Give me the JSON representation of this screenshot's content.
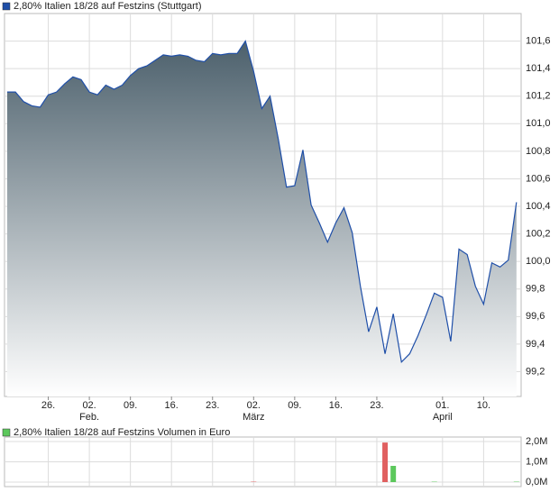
{
  "chart_data": [
    {
      "type": "area",
      "categories": [
        null,
        null,
        null,
        null,
        null,
        "26.",
        null,
        null,
        null,
        null,
        "02.",
        null,
        null,
        null,
        null,
        "09.",
        null,
        null,
        null,
        null,
        "16.",
        null,
        null,
        null,
        null,
        "23.",
        null,
        null,
        null,
        null,
        "02.",
        null,
        null,
        null,
        null,
        "09.",
        null,
        null,
        null,
        null,
        "16.",
        null,
        null,
        null,
        null,
        "23.",
        null,
        null,
        null,
        null,
        null,
        null,
        null,
        "01.",
        null,
        null,
        null,
        null,
        "10.",
        null,
        null,
        null,
        null
      ],
      "month_labels": [
        null,
        null,
        null,
        null,
        null,
        null,
        null,
        null,
        null,
        null,
        "Feb.",
        null,
        null,
        null,
        null,
        null,
        null,
        null,
        null,
        null,
        null,
        null,
        null,
        null,
        null,
        null,
        null,
        null,
        null,
        null,
        "März",
        null,
        null,
        null,
        null,
        null,
        null,
        null,
        null,
        null,
        null,
        null,
        null,
        null,
        null,
        null,
        null,
        null,
        null,
        null,
        null,
        null,
        null,
        "April",
        null,
        null,
        null,
        null,
        null,
        null,
        null,
        null,
        null
      ],
      "series": [
        {
          "name": "2,80% Italien 18/28 auf Festzins (Stuttgart)",
          "color": "#1f4fa8",
          "values": [
            101.23,
            101.23,
            101.16,
            101.13,
            101.12,
            101.21,
            101.23,
            101.29,
            101.34,
            101.32,
            101.23,
            101.21,
            101.28,
            101.25,
            101.28,
            101.35,
            101.4,
            101.42,
            101.46,
            101.5,
            101.49,
            101.5,
            101.49,
            101.46,
            101.45,
            101.51,
            101.5,
            101.51,
            101.51,
            101.6,
            101.38,
            101.11,
            101.2,
            100.89,
            100.54,
            100.55,
            100.81,
            100.41,
            100.28,
            100.14,
            100.28,
            100.39,
            100.21,
            99.82,
            99.49,
            99.67,
            99.33,
            99.62,
            99.27,
            99.33,
            99.46,
            99.61,
            99.77,
            99.74,
            99.42,
            100.09,
            100.05,
            99.82,
            99.69,
            99.99,
            99.96,
            100.01,
            100.43
          ]
        }
      ],
      "ylim": [
        99.02,
        101.8
      ],
      "yticks": [
        {
          "value": 99.2,
          "label": "99,2"
        },
        {
          "value": 99.4,
          "label": "99,4"
        },
        {
          "value": 99.6,
          "label": "99,6"
        },
        {
          "value": 99.8,
          "label": "99,8"
        },
        {
          "value": 100.0,
          "label": "100,0"
        },
        {
          "value": 100.2,
          "label": "100,2"
        },
        {
          "value": 100.4,
          "label": "100,4"
        },
        {
          "value": 100.6,
          "label": "100,6"
        },
        {
          "value": 100.8,
          "label": "100,8"
        },
        {
          "value": 101.0,
          "label": "101,0"
        },
        {
          "value": 101.2,
          "label": "101,2"
        },
        {
          "value": 101.4,
          "label": "101,4"
        },
        {
          "value": 101.6,
          "label": "101,6"
        }
      ],
      "grid": true
    },
    {
      "type": "bar",
      "series": [
        {
          "name": "2,80% Italien 18/28 auf Festzins Volumen in Euro",
          "color": "#5cc85c",
          "values": [
            0,
            0,
            0,
            0,
            0,
            0,
            0,
            0,
            0,
            0,
            0,
            0,
            0,
            0,
            0,
            0,
            0,
            0,
            0,
            0,
            0,
            0,
            0,
            0,
            0,
            0,
            0,
            0,
            0,
            0,
            20000,
            0,
            0,
            0,
            0,
            0,
            0,
            0,
            0,
            0,
            0,
            0,
            0,
            0,
            0,
            0,
            1950000,
            800000,
            0,
            0,
            0,
            0,
            20000,
            0,
            0,
            0,
            0,
            0,
            0,
            0,
            0,
            0,
            20000
          ],
          "colors": [
            "#5cc85c",
            "#5cc85c",
            "#5cc85c",
            "#5cc85c",
            "#5cc85c",
            "#5cc85c",
            "#5cc85c",
            "#5cc85c",
            "#5cc85c",
            "#5cc85c",
            "#5cc85c",
            "#5cc85c",
            "#5cc85c",
            "#5cc85c",
            "#5cc85c",
            "#5cc85c",
            "#5cc85c",
            "#5cc85c",
            "#5cc85c",
            "#5cc85c",
            "#5cc85c",
            "#5cc85c",
            "#5cc85c",
            "#5cc85c",
            "#5cc85c",
            "#5cc85c",
            "#5cc85c",
            "#5cc85c",
            "#5cc85c",
            "#5cc85c",
            "#e06060",
            "#5cc85c",
            "#5cc85c",
            "#5cc85c",
            "#5cc85c",
            "#5cc85c",
            "#5cc85c",
            "#5cc85c",
            "#5cc85c",
            "#5cc85c",
            "#5cc85c",
            "#5cc85c",
            "#5cc85c",
            "#5cc85c",
            "#5cc85c",
            "#5cc85c",
            "#e06060",
            "#5cc85c",
            "#5cc85c",
            "#5cc85c",
            "#5cc85c",
            "#5cc85c",
            "#5cc85c",
            "#5cc85c",
            "#5cc85c",
            "#5cc85c",
            "#5cc85c",
            "#5cc85c",
            "#5cc85c",
            "#5cc85c",
            "#5cc85c",
            "#5cc85c",
            "#5cc85c"
          ]
        }
      ],
      "ylim": [
        0,
        2000000
      ],
      "yticks": [
        {
          "value": 0,
          "label": "0,0M"
        },
        {
          "value": 1000000,
          "label": "1,0M"
        },
        {
          "value": 2000000,
          "label": "2,0M"
        }
      ],
      "grid": true
    }
  ]
}
